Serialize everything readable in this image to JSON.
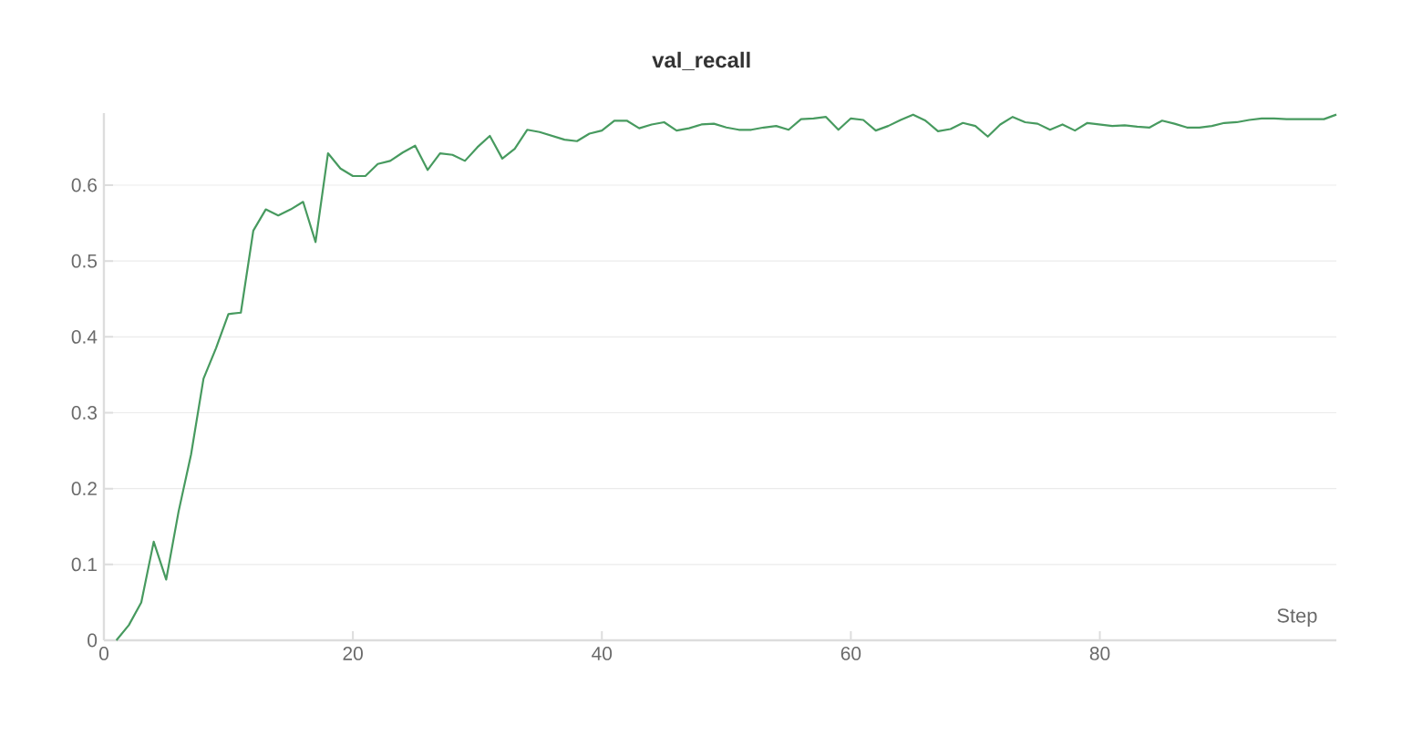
{
  "chart_data": {
    "type": "line",
    "title": "val_recall",
    "xlabel": "Step",
    "x": [
      1,
      2,
      3,
      4,
      5,
      6,
      7,
      8,
      9,
      10,
      11,
      12,
      13,
      14,
      15,
      16,
      17,
      18,
      19,
      20,
      21,
      22,
      23,
      24,
      25,
      26,
      27,
      28,
      29,
      30,
      31,
      32,
      33,
      34,
      35,
      36,
      37,
      38,
      39,
      40,
      41,
      42,
      43,
      44,
      45,
      46,
      47,
      48,
      49,
      50,
      51,
      52,
      53,
      54,
      55,
      56,
      57,
      58,
      59,
      60,
      61,
      62,
      63,
      64,
      65,
      66,
      67,
      68,
      69,
      70,
      71,
      72,
      73,
      74,
      75,
      76,
      77,
      78,
      79,
      80,
      81,
      82,
      83,
      84,
      85,
      86,
      87,
      88,
      89,
      90,
      91,
      92,
      93,
      94,
      95,
      96,
      97,
      98,
      99
    ],
    "series": [
      {
        "color": "#479a5f",
        "values": [
          0.0,
          0.02,
          0.05,
          0.13,
          0.08,
          0.17,
          0.245,
          0.345,
          0.385,
          0.43,
          0.432,
          0.54,
          0.568,
          0.56,
          0.568,
          0.578,
          0.525,
          0.642,
          0.622,
          0.612,
          0.612,
          0.628,
          0.632,
          0.643,
          0.652,
          0.62,
          0.642,
          0.64,
          0.632,
          0.65,
          0.665,
          0.635,
          0.648,
          0.673,
          0.67,
          0.665,
          0.66,
          0.658,
          0.668,
          0.672,
          0.685,
          0.685,
          0.675,
          0.68,
          0.683,
          0.672,
          0.675,
          0.68,
          0.681,
          0.676,
          0.673,
          0.673,
          0.676,
          0.678,
          0.673,
          0.687,
          0.688,
          0.69,
          0.673,
          0.688,
          0.686,
          0.672,
          0.678,
          0.686,
          0.693,
          0.685,
          0.671,
          0.674,
          0.682,
          0.678,
          0.664,
          0.68,
          0.69,
          0.683,
          0.681,
          0.673,
          0.68,
          0.672,
          0.682,
          0.68,
          0.678,
          0.679,
          0.677,
          0.676,
          0.685,
          0.681,
          0.676,
          0.676,
          0.678,
          0.682,
          0.683,
          0.686,
          0.688,
          0.688,
          0.687,
          0.687,
          0.687,
          0.687,
          0.693
        ]
      }
    ],
    "xlim": [
      0,
      99
    ],
    "ylim": [
      0,
      0.695
    ],
    "xticks": [
      0,
      20,
      40,
      60,
      80
    ],
    "yticks": [
      0,
      0.1,
      0.2,
      0.3,
      0.4,
      0.5,
      0.6
    ],
    "grid": "y",
    "legend": false,
    "marker": "none",
    "line_style": "solid"
  }
}
